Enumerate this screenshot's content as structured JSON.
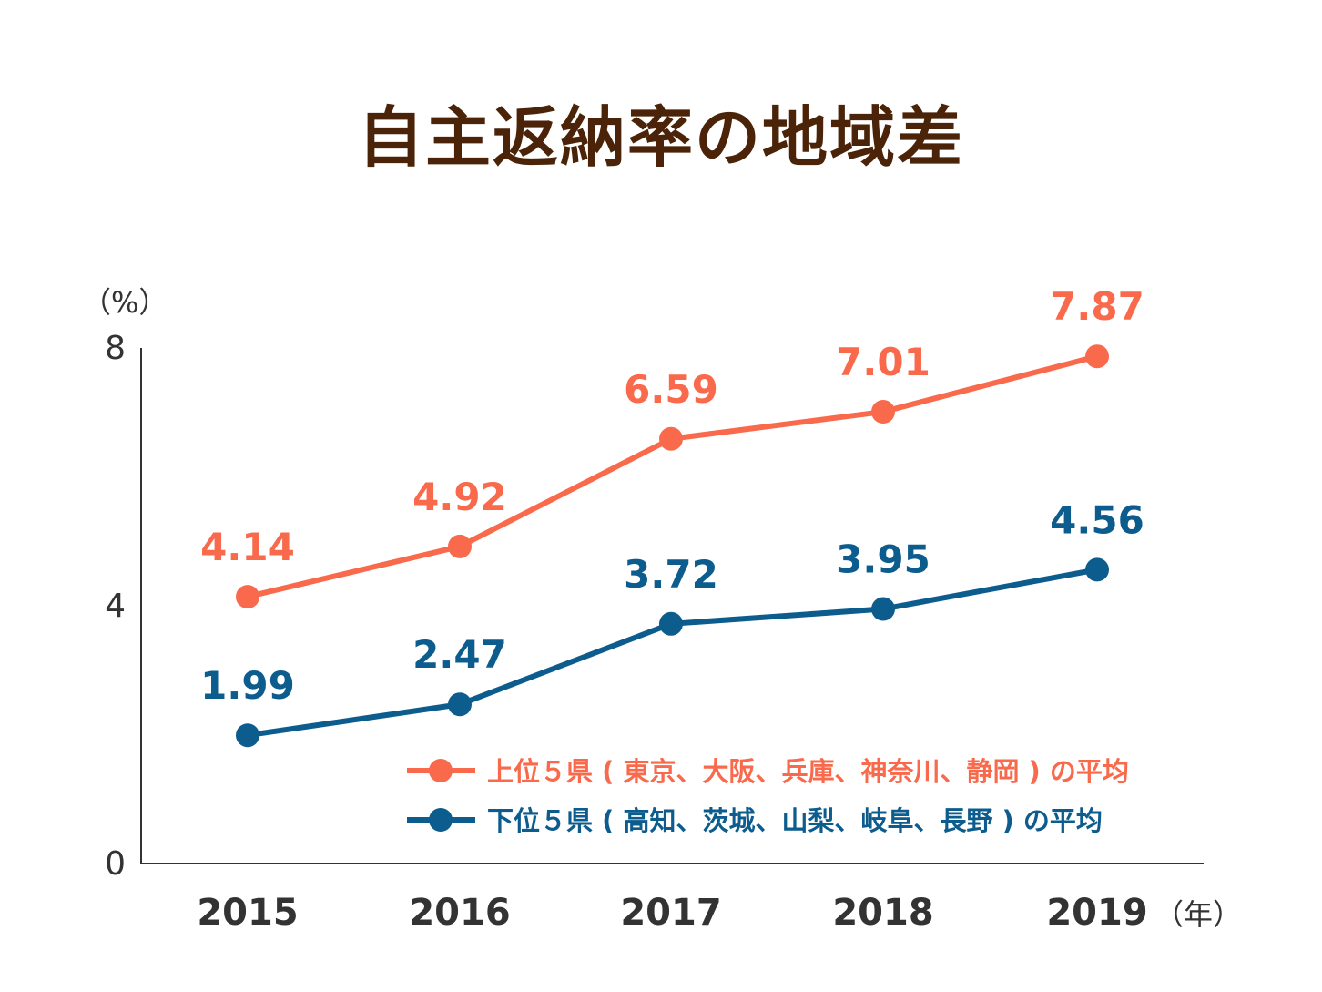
{
  "title": "自主返納率の地域差",
  "colors": {
    "title": "#4a2308",
    "upper": "#f96a4c",
    "lower": "#0d5c8e",
    "axis": "#333333"
  },
  "chart_data": {
    "type": "line",
    "title": "自主返納率の地域差",
    "y_unit": "（%）",
    "x_unit": "（年）",
    "x": [
      "2015",
      "2016",
      "2017",
      "2018",
      "2019"
    ],
    "ylim": [
      0,
      8
    ],
    "y_ticks": [
      "0",
      "4",
      "8"
    ],
    "grid": false,
    "legend_position": "bottom-right",
    "series": [
      {
        "name": "上位５県 ( 東京、大阪、兵庫、神奈川、静岡 ) の平均",
        "values": [
          4.14,
          4.92,
          6.59,
          7.01,
          7.87
        ],
        "labels": [
          "4.14",
          "4.92",
          "6.59",
          "7.01",
          "7.87"
        ],
        "color": "#f96a4c"
      },
      {
        "name": "下位５県 ( 高知、茨城、山梨、岐阜、長野 ) の平均",
        "values": [
          1.99,
          2.47,
          3.72,
          3.95,
          4.56
        ],
        "labels": [
          "1.99",
          "2.47",
          "3.72",
          "3.95",
          "4.56"
        ],
        "color": "#0d5c8e"
      }
    ]
  }
}
